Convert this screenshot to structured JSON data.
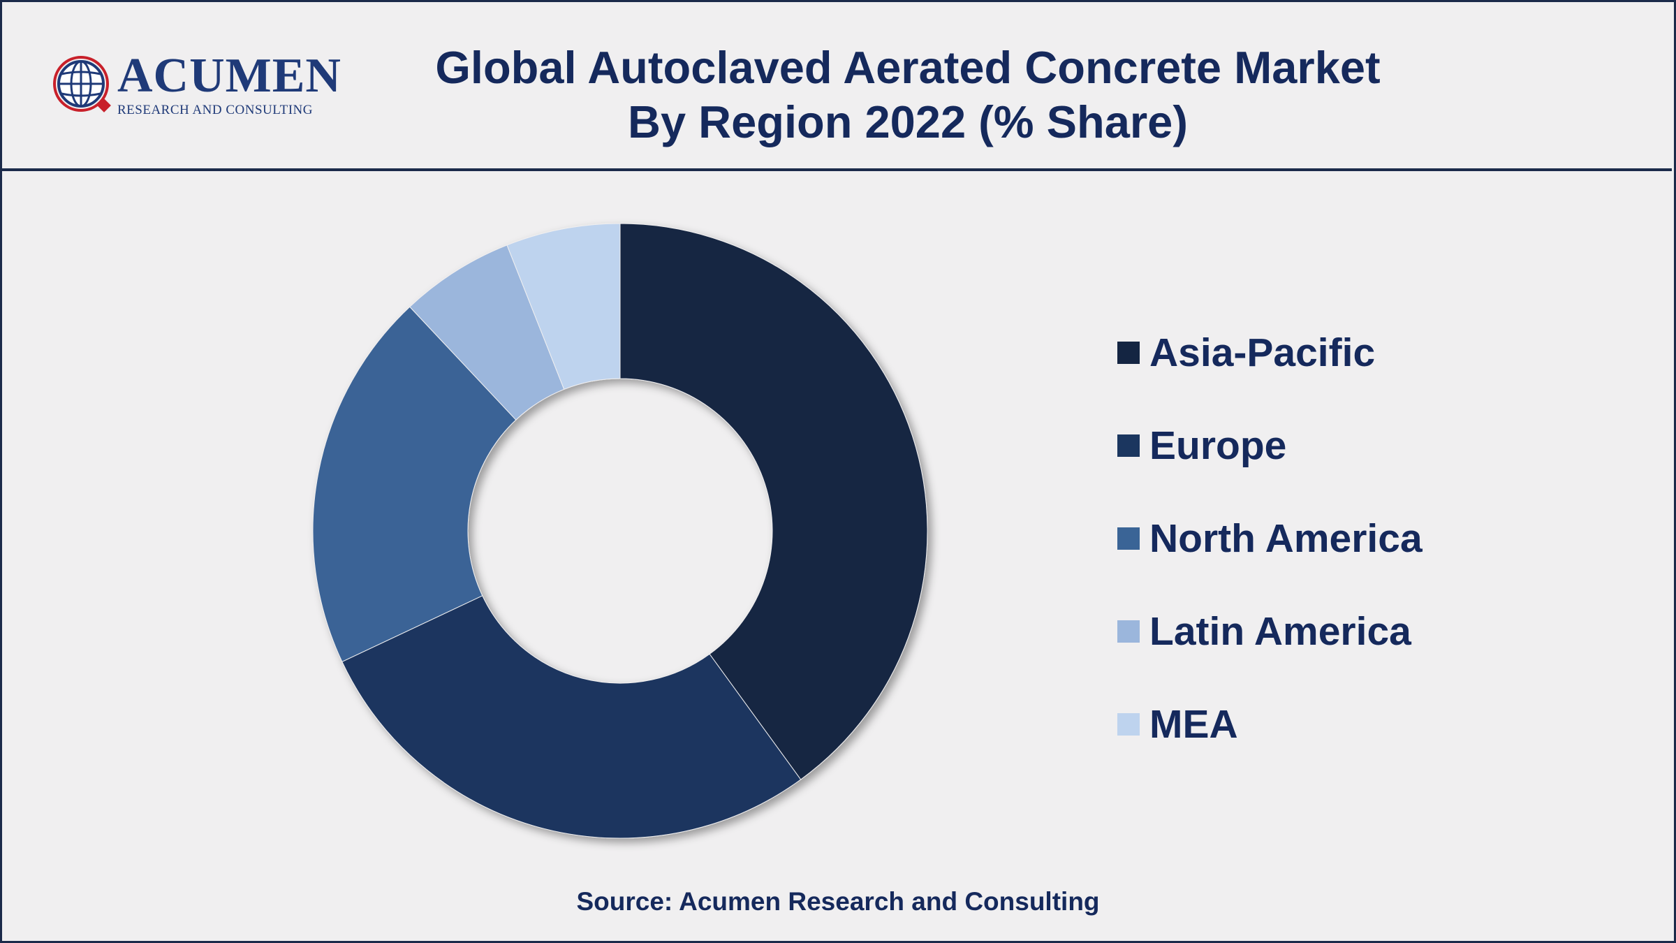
{
  "header": {
    "logo": {
      "name": "ACUMEN",
      "tagline": "RESEARCH AND CONSULTING",
      "icon": "globe-icon"
    },
    "title_line1": "Global Autoclaved Aerated Concrete Market",
    "title_line2": "By Region 2022 (% Share)"
  },
  "chart_data": {
    "type": "pie",
    "donut": true,
    "title": "Global Autoclaved Aerated Concrete Market By Region 2022 (% Share)",
    "legend_position": "right",
    "categories": [
      "Asia-Pacific",
      "Europe",
      "North America",
      "Latin America",
      "MEA"
    ],
    "values": [
      40,
      28,
      20,
      6,
      6
    ],
    "colors": [
      "#142542",
      "#1b365f",
      "#3a6496",
      "#9bb6dc",
      "#bed3ee"
    ]
  },
  "footer": {
    "source": "Source: Acumen Research and Consulting"
  },
  "colors": {
    "background": "#f0eff0",
    "text": "#15295c",
    "border": "#1b2a4a"
  }
}
